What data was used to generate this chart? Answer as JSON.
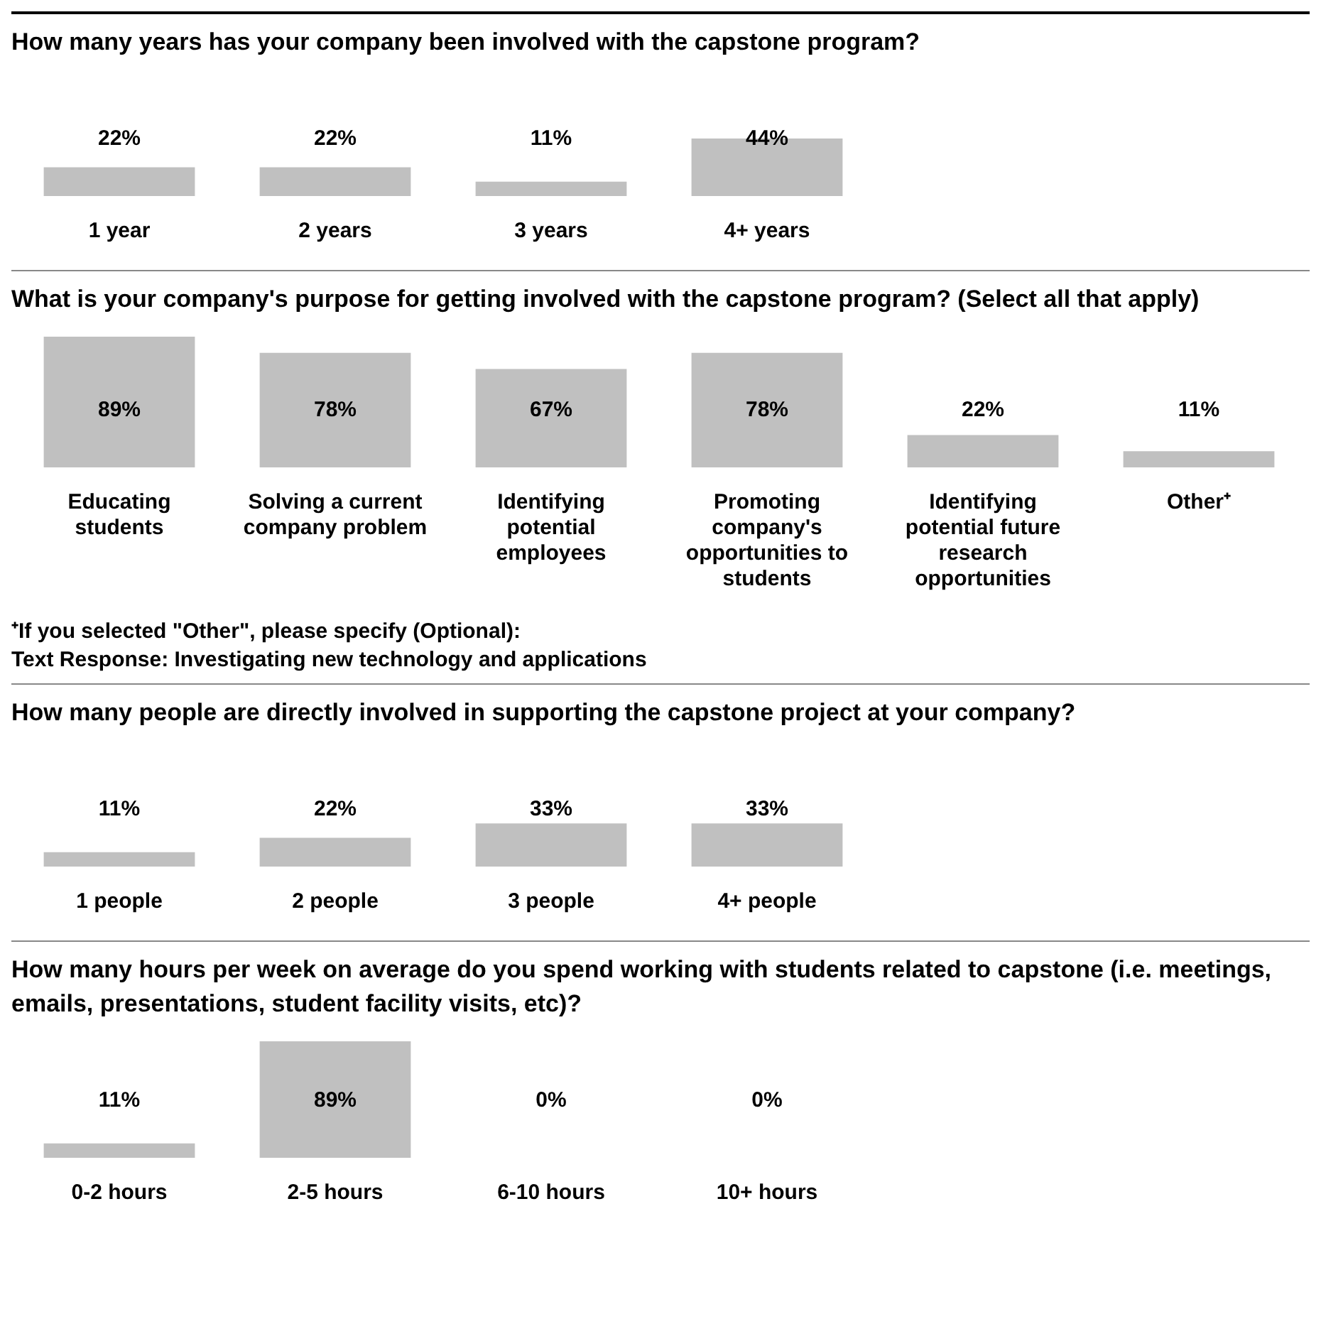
{
  "chart_data": [
    {
      "type": "bar",
      "title": "How many years has your company been involved with the capstone program?",
      "categories": [
        "1 year",
        "2 years",
        "3 years",
        "4+ years"
      ],
      "values": [
        22,
        22,
        11,
        44
      ],
      "value_labels": [
        "22%",
        "22%",
        "11%",
        "44%"
      ],
      "color": "#c0c0c0"
    },
    {
      "type": "bar",
      "title": "What is your company's purpose for getting involved with the capstone program? (Select all that apply)",
      "categories": [
        "Educating students",
        "Solving a current company problem",
        "Identifying potential employees",
        "Promoting company's opportunities to students",
        "Identifying potential future research opportunities",
        "Other⁺"
      ],
      "values": [
        89,
        78,
        67,
        78,
        22,
        11
      ],
      "value_labels": [
        "89%",
        "78%",
        "67%",
        "78%",
        "22%",
        "11%"
      ],
      "color": "#c0c0c0",
      "annotations": [
        "⁺If you selected \"Other\", please specify (Optional):",
        "Text Response:  Investigating new technology and applications"
      ]
    },
    {
      "type": "bar",
      "title": "How many people are directly involved in supporting the capstone project at your company?",
      "categories": [
        "1 people",
        "2 people",
        "3 people",
        "4+ people"
      ],
      "values": [
        11,
        22,
        33,
        33
      ],
      "value_labels": [
        "11%",
        "22%",
        "33%",
        "33%"
      ],
      "color": "#c0c0c0"
    },
    {
      "type": "bar",
      "title": "How many hours per week on average do you spend working with students related to capstone (i.e. meetings, emails, presentations, student facility visits, etc)?",
      "categories": [
        "0-2 hours",
        "2-5 hours",
        "6-10 hours",
        "10+ hours"
      ],
      "values": [
        11,
        89,
        0,
        0
      ],
      "value_labels": [
        "11%",
        "89%",
        "0%",
        "0%"
      ],
      "color": "#c0c0c0"
    }
  ]
}
